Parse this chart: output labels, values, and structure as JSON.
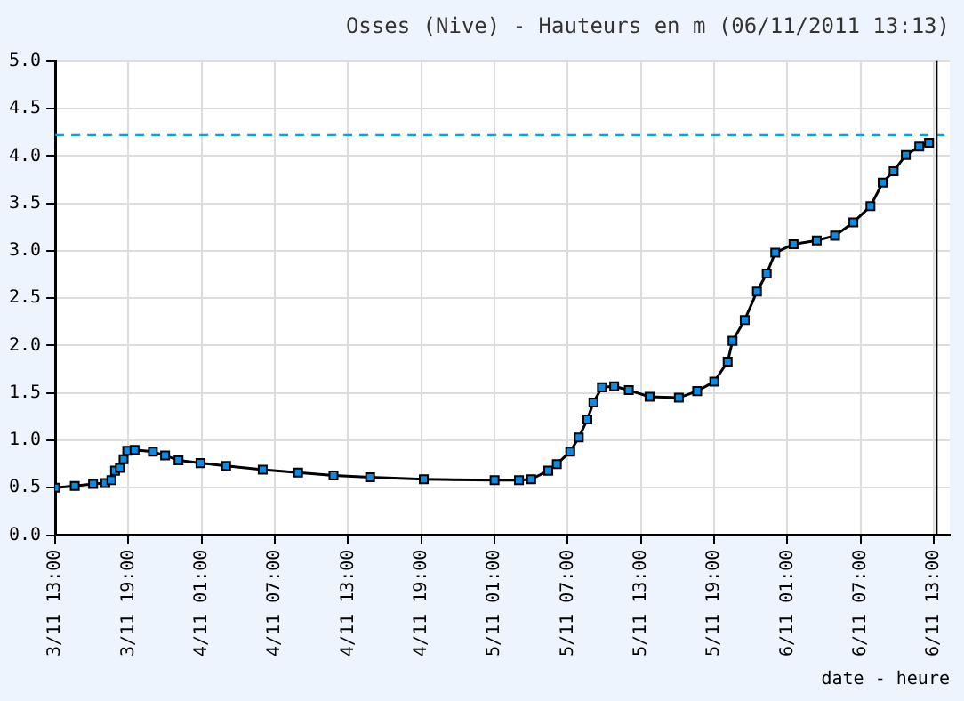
{
  "chart_data": {
    "type": "line",
    "title": "Osses (Nive) - Hauteurs en m (06/11/2011 13:13)",
    "xlabel": "date - heure",
    "x": [
      "2011-11-03T13:00",
      "2011-11-03T14:36",
      "2011-11-03T16:06",
      "2011-11-03T17:06",
      "2011-11-03T17:36",
      "2011-11-03T17:54",
      "2011-11-03T18:18",
      "2011-11-03T18:36",
      "2011-11-03T18:54",
      "2011-11-03T19:30",
      "2011-11-03T21:00",
      "2011-11-03T22:00",
      "2011-11-03T23:06",
      "2011-11-04T00:54",
      "2011-11-04T03:00",
      "2011-11-04T06:00",
      "2011-11-04T08:54",
      "2011-11-04T11:48",
      "2011-11-04T14:48",
      "2011-11-04T19:12",
      "2011-11-05T01:00",
      "2011-11-05T03:00",
      "2011-11-05T04:00",
      "2011-11-05T05:24",
      "2011-11-05T06:06",
      "2011-11-05T07:12",
      "2011-11-05T07:54",
      "2011-11-05T08:36",
      "2011-11-05T09:06",
      "2011-11-05T09:48",
      "2011-11-05T10:48",
      "2011-11-05T12:00",
      "2011-11-05T13:42",
      "2011-11-05T16:06",
      "2011-11-05T17:36",
      "2011-11-05T19:00",
      "2011-11-05T20:06",
      "2011-11-05T20:30",
      "2011-11-05T21:30",
      "2011-11-05T22:30",
      "2011-11-05T23:18",
      "2011-11-06T00:00",
      "2011-11-06T01:30",
      "2011-11-06T03:24",
      "2011-11-06T04:54",
      "2011-11-06T06:24",
      "2011-11-06T07:48",
      "2011-11-06T08:48",
      "2011-11-06T09:42",
      "2011-11-06T10:42",
      "2011-11-06T11:48",
      "2011-11-06T12:36"
    ],
    "series": [
      {
        "color": "#0a8ce6",
        "values": [
          0.5,
          0.52,
          0.54,
          0.55,
          0.58,
          0.68,
          0.71,
          0.8,
          0.89,
          0.9,
          0.88,
          0.84,
          0.79,
          0.76,
          0.73,
          0.69,
          0.66,
          0.63,
          0.61,
          0.59,
          0.58,
          0.58,
          0.59,
          0.68,
          0.75,
          0.88,
          1.03,
          1.22,
          1.4,
          1.56,
          1.57,
          1.53,
          1.46,
          1.45,
          1.52,
          1.62,
          1.83,
          2.05,
          2.27,
          2.57,
          2.76,
          2.98,
          3.07,
          3.11,
          3.16,
          3.3,
          3.47,
          3.72,
          3.84,
          4.01,
          4.1,
          4.14
        ]
      }
    ],
    "xlim": [
      "2011-11-03T13:00",
      "2011-11-06T14:18"
    ],
    "xticks": [
      {
        "value": "2011-11-03T13:00",
        "label": "3/11 13:00"
      },
      {
        "value": "2011-11-03T19:00",
        "label": "3/11 19:00"
      },
      {
        "value": "2011-11-04T01:00",
        "label": "4/11 01:00"
      },
      {
        "value": "2011-11-04T07:00",
        "label": "4/11 07:00"
      },
      {
        "value": "2011-11-04T13:00",
        "label": "4/11 13:00"
      },
      {
        "value": "2011-11-04T19:00",
        "label": "4/11 19:00"
      },
      {
        "value": "2011-11-05T01:00",
        "label": "5/11 01:00"
      },
      {
        "value": "2011-11-05T07:00",
        "label": "5/11 07:00"
      },
      {
        "value": "2011-11-05T13:00",
        "label": "5/11 13:00"
      },
      {
        "value": "2011-11-05T19:00",
        "label": "5/11 19:00"
      },
      {
        "value": "2011-11-06T01:00",
        "label": "6/11 01:00"
      },
      {
        "value": "2011-11-06T07:00",
        "label": "6/11 07:00"
      },
      {
        "value": "2011-11-06T13:00",
        "label": "6/11 13:00"
      }
    ],
    "ylim": [
      0,
      5
    ],
    "yticks": [
      {
        "value": 0,
        "label": "0.0"
      },
      {
        "value": 0.5,
        "label": "0.5"
      },
      {
        "value": 1,
        "label": "1.0"
      },
      {
        "value": 1.5,
        "label": "1.5"
      },
      {
        "value": 2,
        "label": "2.0"
      },
      {
        "value": 2.5,
        "label": "2.5"
      },
      {
        "value": 3,
        "label": "3.0"
      },
      {
        "value": 3.5,
        "label": "3.5"
      },
      {
        "value": 4,
        "label": "4.0"
      },
      {
        "value": 4.5,
        "label": "4.5"
      },
      {
        "value": 5,
        "label": "5.0"
      }
    ],
    "ref_lines": [
      {
        "axis": "y",
        "value": 4.22,
        "color": "#00a0ff",
        "line_style": "dashed"
      },
      {
        "axis": "x",
        "value": "2011-11-06T13:13",
        "color": "#000000",
        "line_style": "solid"
      }
    ],
    "grid": true,
    "marker": "square",
    "legend": false
  }
}
